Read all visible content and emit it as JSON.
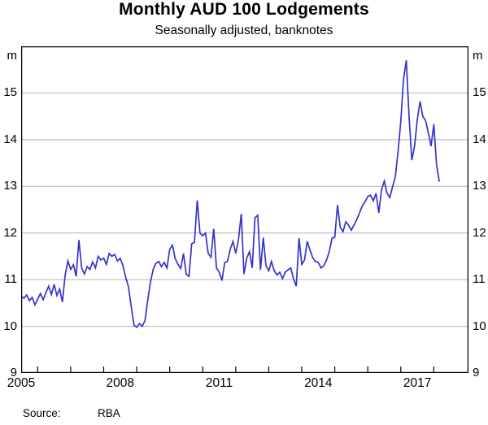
{
  "chart_data": {
    "type": "line",
    "title": "Monthly AUD 100 Lodgements",
    "subtitle": "Seasonally adjusted, banknotes",
    "unit_label": "m",
    "grid_on": true,
    "grid_color": "#b3b3b3",
    "axis_color": "#000000",
    "y_axis": {
      "min": 9,
      "max": 16,
      "labeled_ticks": [
        9,
        10,
        11,
        12,
        13,
        14,
        15
      ],
      "gridlines": [
        10,
        11,
        12,
        13,
        14,
        15
      ],
      "unit": "m",
      "sides": "both"
    },
    "x_axis": {
      "domain_start": 2005.0,
      "domain_end": 2018.55,
      "tick_years": [
        2005.5,
        2006.5,
        2007.5,
        2008.5,
        2009.5,
        2010.5,
        2011.5,
        2012.5,
        2013.5,
        2014.5,
        2015.5,
        2016.5,
        2017.5
      ],
      "label_years": [
        "2005",
        "2008",
        "2011",
        "2014",
        "2017"
      ]
    },
    "series": [
      {
        "name": "AUD 100 lodgements, seasonally adjusted",
        "color": "#3333cc",
        "frequency": "monthly",
        "start": "2005-01",
        "end": "2017-09",
        "values": [
          10.65,
          10.6,
          10.67,
          10.55,
          10.62,
          10.46,
          10.58,
          10.7,
          10.57,
          10.72,
          10.86,
          10.68,
          10.9,
          10.66,
          10.8,
          10.52,
          11.1,
          11.4,
          11.22,
          11.32,
          11.07,
          11.85,
          11.25,
          11.12,
          11.28,
          11.22,
          11.38,
          11.25,
          11.5,
          11.42,
          11.46,
          11.33,
          11.56,
          11.5,
          11.54,
          11.4,
          11.46,
          11.3,
          11.05,
          10.85,
          10.43,
          10.03,
          9.98,
          10.06,
          10.0,
          10.12,
          10.55,
          10.95,
          11.22,
          11.35,
          11.39,
          11.28,
          11.37,
          11.25,
          11.65,
          11.74,
          11.45,
          11.33,
          11.24,
          11.56,
          11.12,
          11.07,
          11.77,
          11.8,
          12.7,
          12.0,
          11.94,
          12.0,
          11.56,
          11.48,
          12.09,
          11.25,
          11.16,
          10.98,
          11.37,
          11.39,
          11.65,
          11.82,
          11.56,
          11.86,
          12.41,
          11.12,
          11.46,
          11.6,
          11.25,
          12.33,
          12.38,
          11.21,
          11.9,
          11.3,
          11.19,
          11.39,
          11.19,
          11.1,
          11.16,
          11.02,
          11.16,
          11.21,
          11.25,
          11.02,
          10.86,
          11.89,
          11.33,
          11.42,
          11.82,
          11.63,
          11.47,
          11.39,
          11.37,
          11.25,
          11.3,
          11.42,
          11.6,
          11.89,
          11.91,
          12.6,
          12.12,
          12.03,
          12.24,
          12.17,
          12.06,
          12.17,
          12.29,
          12.43,
          12.58,
          12.67,
          12.78,
          12.81,
          12.69,
          12.85,
          12.43,
          12.93,
          13.11,
          12.85,
          12.76,
          12.99,
          13.2,
          13.74,
          14.4,
          15.3,
          15.7,
          14.5,
          13.56,
          13.86,
          14.43,
          14.82,
          14.5,
          14.41,
          14.15,
          13.86,
          14.33,
          13.46,
          13.1
        ]
      }
    ],
    "source_label": "Source:",
    "source_value": "RBA"
  }
}
